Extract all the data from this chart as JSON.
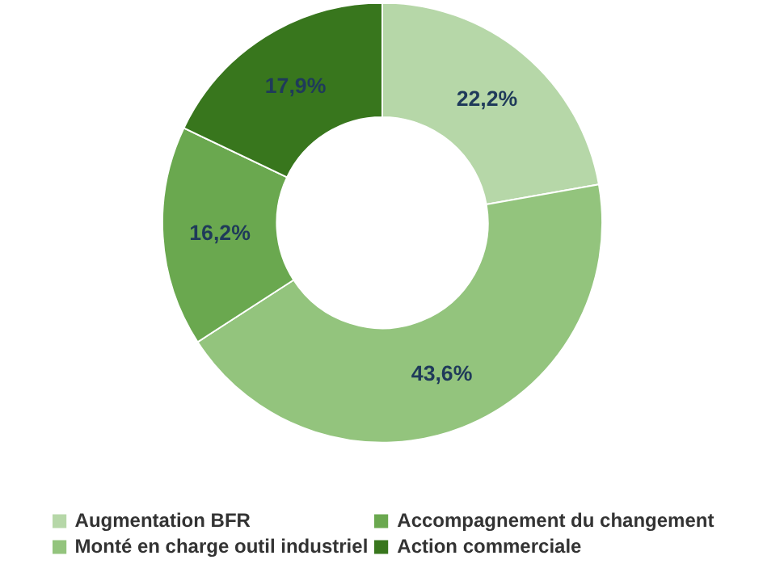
{
  "chart_data": {
    "type": "donut",
    "categories": [
      "Augmentation BFR",
      "Monté en charge outil industriel",
      "Accompagnement du changement",
      "Action commerciale"
    ],
    "values": [
      22.2,
      43.6,
      16.2,
      17.9
    ],
    "colors": [
      "#b6d7a8",
      "#93c47d",
      "#6aa84f",
      "#38761d"
    ],
    "value_labels": [
      "22,2%",
      "43,6%",
      "16,2%",
      "17,9%"
    ],
    "legend": "bottom"
  }
}
